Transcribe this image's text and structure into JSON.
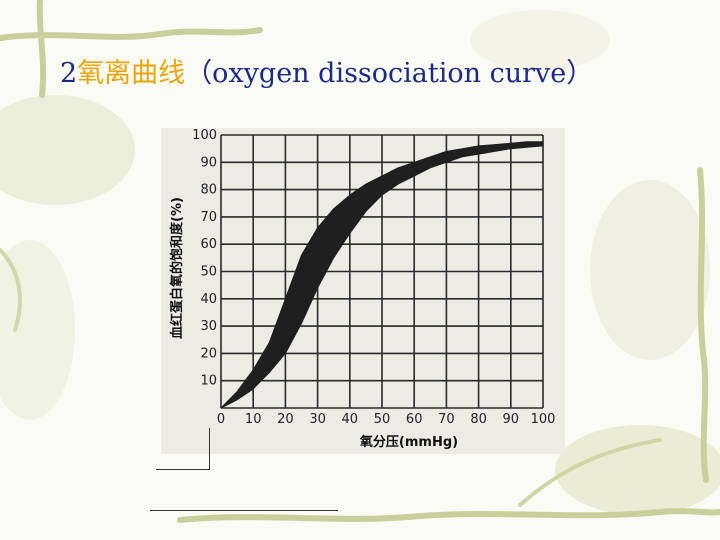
{
  "slide": {
    "title_prefix": "2",
    "title_cn": "氧离曲线",
    "title_en": "（oxygen dissociation curve）"
  },
  "chart_data": {
    "type": "line",
    "xlabel": "氧分压(mmHg)",
    "ylabel": "血红蛋白氧的饱和度(%)",
    "xlim": [
      0,
      100
    ],
    "ylim": [
      0,
      100
    ],
    "x_ticks": [
      0,
      10,
      20,
      30,
      40,
      50,
      60,
      70,
      80,
      90,
      100
    ],
    "y_ticks": [
      10,
      20,
      30,
      40,
      50,
      60,
      70,
      80,
      90,
      100
    ],
    "grid": true,
    "series": [
      {
        "band": "true",
        "x": [
          0,
          5,
          10,
          15,
          20,
          25,
          30,
          35,
          40,
          45,
          50,
          55,
          60,
          65,
          70,
          75,
          80,
          85,
          90,
          95,
          100
        ],
        "y_lower": [
          0,
          3,
          7,
          13,
          20,
          31,
          44,
          55,
          64,
          72,
          78,
          82,
          85,
          88,
          90,
          92,
          93,
          94,
          95,
          95.5,
          96
        ],
        "y_upper": [
          0,
          6,
          14,
          24,
          40,
          56,
          66,
          73,
          78,
          82,
          85,
          88,
          90,
          92,
          94,
          95,
          96,
          96.5,
          97,
          97.5,
          97.5
        ]
      }
    ],
    "colors": {
      "band": "#1f1f1f",
      "grid": "#2a2a2a"
    }
  }
}
